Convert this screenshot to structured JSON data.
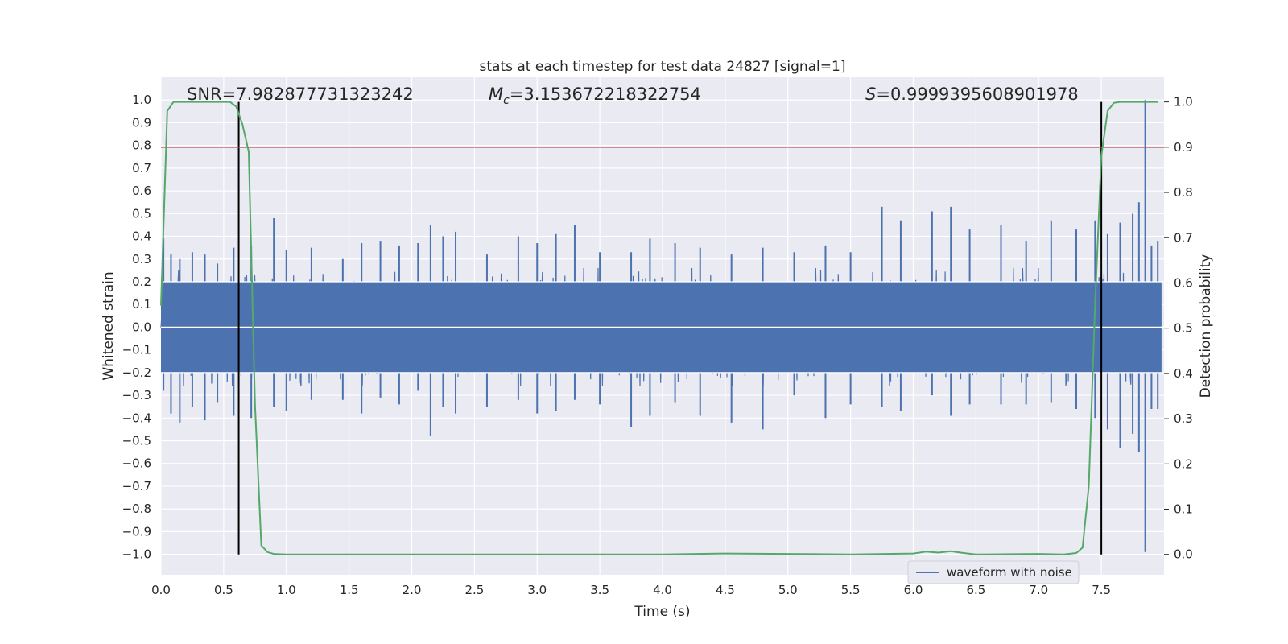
{
  "chart_data": {
    "type": "line",
    "title": "stats at each timestep for test data 24827 [signal=1]",
    "xlabel": "Time (s)",
    "ylabel": "Whitened strain",
    "y2label": "Detection probability",
    "xlim": [
      0.0,
      8.0
    ],
    "ylim": [
      -1.09,
      1.1
    ],
    "y2lim": [
      -0.045,
      1.0545
    ],
    "x_ticks": [
      0.0,
      0.5,
      1.0,
      1.5,
      2.0,
      2.5,
      3.0,
      3.5,
      4.0,
      4.5,
      5.0,
      5.5,
      6.0,
      6.5,
      7.0,
      7.5
    ],
    "x_tick_labels": [
      "0.0",
      "0.5",
      "1.0",
      "1.5",
      "2.0",
      "2.5",
      "3.0",
      "3.5",
      "4.0",
      "4.5",
      "5.0",
      "5.5",
      "6.0",
      "6.5",
      "7.0",
      "7.5"
    ],
    "y_ticks": [
      -1.0,
      -0.9,
      -0.8,
      -0.7,
      -0.6,
      -0.5,
      -0.4,
      -0.3,
      -0.2,
      -0.1,
      0.0,
      0.1,
      0.2,
      0.3,
      0.4,
      0.5,
      0.6,
      0.7,
      0.8,
      0.9,
      1.0
    ],
    "y_tick_labels": [
      "−1.0",
      "−0.9",
      "−0.8",
      "−0.7",
      "−0.6",
      "−0.5",
      "−0.4",
      "−0.3",
      "−0.2",
      "−0.1",
      "0.0",
      "0.1",
      "0.2",
      "0.3",
      "0.4",
      "0.5",
      "0.6",
      "0.7",
      "0.8",
      "0.9",
      "1.0"
    ],
    "y2_ticks": [
      0.0,
      0.1,
      0.2,
      0.3,
      0.4,
      0.5,
      0.6,
      0.7,
      0.8,
      0.9,
      1.0
    ],
    "y2_tick_labels": [
      "0.0",
      "0.1",
      "0.2",
      "0.3",
      "0.4",
      "0.5",
      "0.6",
      "0.7",
      "0.8",
      "0.9",
      "1.0"
    ],
    "grid": true,
    "legend": {
      "placement": "lower-right",
      "entries": [
        "waveform with noise"
      ]
    },
    "annotations": {
      "snr": "SNR=7.982877731323242",
      "mc_symbol": "M",
      "mc_subscript": "c",
      "mc_value": "=3.153672218322754",
      "s_symbol": "S",
      "s_value": "=0.9999395608901978"
    },
    "threshold": {
      "y2": 0.9,
      "color": "#c44e52"
    },
    "vertical_markers": [
      0.62,
      7.5
    ],
    "series": [
      {
        "name": "waveform with noise",
        "axis": "left",
        "color": "#4c72b0",
        "description_values": "noisy whitened strain, bulk within approx ±0.2, peaks near ±0.45, chirp spike to 1.0 / -1.0 near x=7.85",
        "peaks": [
          [
            0.02,
            0.39,
            -0.28
          ],
          [
            0.08,
            0.32,
            -0.38
          ],
          [
            0.15,
            0.3,
            -0.42
          ],
          [
            0.25,
            0.33,
            -0.35
          ],
          [
            0.35,
            0.32,
            -0.41
          ],
          [
            0.45,
            0.28,
            -0.33
          ],
          [
            0.58,
            0.35,
            -0.39
          ],
          [
            0.72,
            0.36,
            -0.4
          ],
          [
            0.9,
            0.48,
            -0.35
          ],
          [
            1.0,
            0.34,
            -0.37
          ],
          [
            1.2,
            0.35,
            -0.32
          ],
          [
            1.45,
            0.3,
            -0.32
          ],
          [
            1.6,
            0.37,
            -0.38
          ],
          [
            1.75,
            0.38,
            -0.31
          ],
          [
            1.9,
            0.36,
            -0.34
          ],
          [
            2.05,
            0.37,
            -0.28
          ],
          [
            2.15,
            0.45,
            -0.48
          ],
          [
            2.25,
            0.4,
            -0.35
          ],
          [
            2.35,
            0.42,
            -0.38
          ],
          [
            2.6,
            0.32,
            -0.35
          ],
          [
            2.85,
            0.4,
            -0.32
          ],
          [
            3.0,
            0.37,
            -0.38
          ],
          [
            3.15,
            0.41,
            -0.37
          ],
          [
            3.3,
            0.45,
            -0.32
          ],
          [
            3.5,
            0.33,
            -0.34
          ],
          [
            3.75,
            0.33,
            -0.44
          ],
          [
            3.9,
            0.39,
            -0.39
          ],
          [
            4.1,
            0.37,
            -0.33
          ],
          [
            4.3,
            0.35,
            -0.39
          ],
          [
            4.55,
            0.32,
            -0.42
          ],
          [
            4.8,
            0.35,
            -0.45
          ],
          [
            5.05,
            0.33,
            -0.3
          ],
          [
            5.3,
            0.36,
            -0.4
          ],
          [
            5.5,
            0.33,
            -0.34
          ],
          [
            5.75,
            0.53,
            -0.35
          ],
          [
            5.9,
            0.47,
            -0.37
          ],
          [
            6.15,
            0.51,
            -0.3
          ],
          [
            6.3,
            0.53,
            -0.39
          ],
          [
            6.45,
            0.43,
            -0.34
          ],
          [
            6.7,
            0.45,
            -0.34
          ],
          [
            6.9,
            0.38,
            -0.34
          ],
          [
            7.1,
            0.47,
            -0.33
          ],
          [
            7.3,
            0.43,
            -0.36
          ],
          [
            7.45,
            0.47,
            -0.4
          ],
          [
            7.55,
            0.41,
            -0.45
          ],
          [
            7.65,
            0.46,
            -0.53
          ],
          [
            7.75,
            0.5,
            -0.47
          ],
          [
            7.8,
            0.55,
            -0.55
          ],
          [
            7.85,
            1.0,
            -0.99
          ],
          [
            7.9,
            0.36,
            -0.36
          ],
          [
            7.95,
            0.38,
            -0.36
          ]
        ]
      },
      {
        "name": "",
        "axis": "right",
        "color": "#55a868",
        "x": [
          0.0,
          0.05,
          0.1,
          0.2,
          0.3,
          0.4,
          0.5,
          0.55,
          0.6,
          0.65,
          0.7,
          0.75,
          0.8,
          0.85,
          0.9,
          1.0,
          2.0,
          3.0,
          4.0,
          4.5,
          5.0,
          5.5,
          6.0,
          6.1,
          6.2,
          6.3,
          6.4,
          6.5,
          7.0,
          7.2,
          7.3,
          7.35,
          7.4,
          7.45,
          7.5,
          7.55,
          7.6,
          7.65,
          7.7,
          7.8,
          7.95
        ],
        "y": [
          0.55,
          0.98,
          1.0,
          1.0,
          1.0,
          1.0,
          1.0,
          1.0,
          0.99,
          0.95,
          0.89,
          0.33,
          0.02,
          0.005,
          0.001,
          0.0,
          0.0,
          0.0,
          0.0,
          0.002,
          0.001,
          0.0,
          0.002,
          0.006,
          0.004,
          0.007,
          0.003,
          0.0,
          0.001,
          0.0,
          0.003,
          0.015,
          0.15,
          0.55,
          0.88,
          0.98,
          0.998,
          1.0,
          1.0,
          1.0,
          1.0
        ]
      }
    ]
  }
}
